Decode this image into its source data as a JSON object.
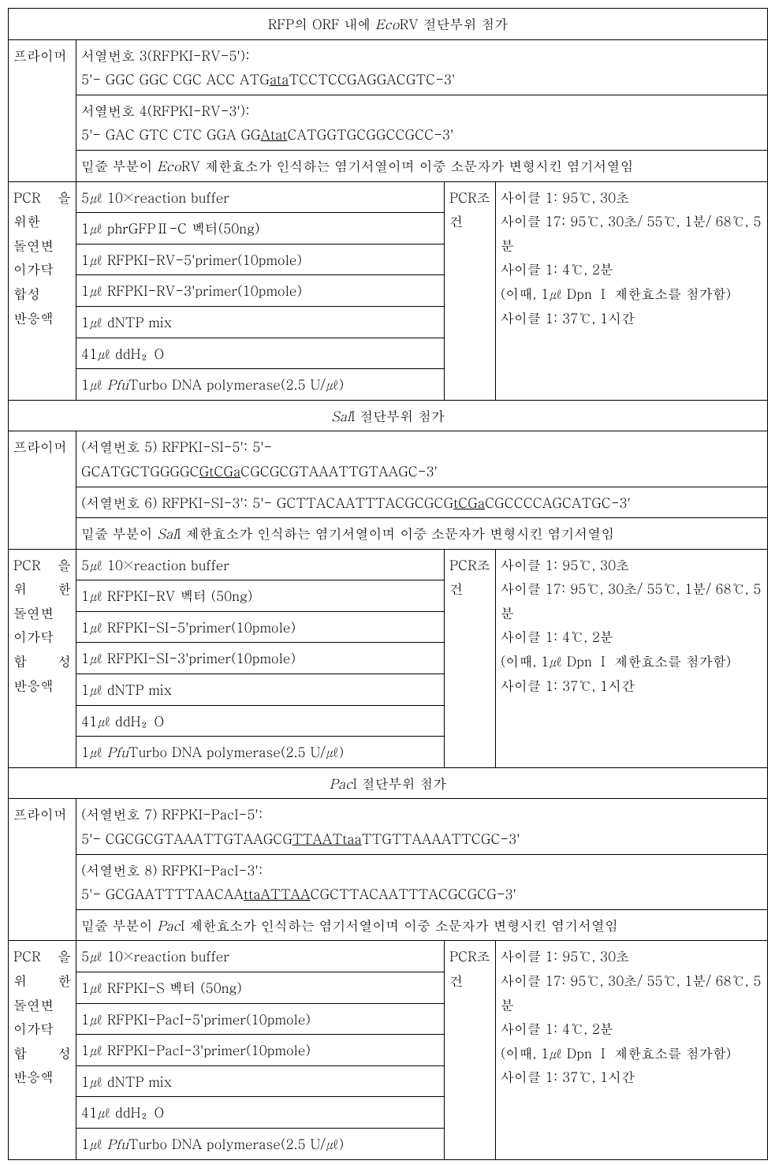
{
  "colors": {
    "border": "#000000",
    "bg": "#ffffff",
    "text": "#000000"
  },
  "sections": [
    {
      "header_pre": "RFP의 ORF 내에 ",
      "header_enzyme": "Eco",
      "header_enzyme_suffix": "RV 절단부위 첨가",
      "primer_label": "프라이머",
      "primer1_title": "서열번호   3(RFPKI-RV-5'):",
      "primer1_pre": "5'- GGC GGC CGC ACC ATG",
      "primer1_mut": "ata",
      "primer1_post": "TCCTCCGAGGACGTC-3'",
      "primer2_title": "서열번호 4(RFPKI-RV-3'):",
      "primer2_pre": "5'- GAC GTC CTC   GGA GG",
      "primer2_mut": "Atat",
      "primer2_post": "CATGGTGCGGCCGCC-3'",
      "note_pre": "밑줄  부분이 ",
      "note_enzyme": "Eco",
      "note_post": "RV 제한효소가 인식하는 염기서열이며 이중 소문자가 변형시킨 염기서열임",
      "mix_label_lines": [
        "PCR 을",
        "위한",
        "돌연변",
        "이가닥",
        "합성",
        "반응액"
      ],
      "mix_rows": [
        "5㎕ 10×reaction buffer",
        "1㎕ phrGFPⅡ-C 벡터(50ng)",
        "1㎕ RFPKI-RV-5'primer(10pmole)",
        "1㎕ RFPKI-RV-3'primer(10pmole)",
        "1㎕ dNTP mix",
        "41㎕ ddH₂O"
      ],
      "mix_last_pre": "1㎕ ",
      "mix_last_it": "Pfu",
      "mix_last_post": "Turbo DNA polymerase(2.5 U/㎕)",
      "cond_label": "PCR조건",
      "cond_lines": [
        "사이클 1: 95℃, 30초",
        "사이클 17: 95℃, 30초/ 55℃, 1분/ 68℃, 5분",
        "사이클 1: 4℃, 2분",
        "(이때, 1㎕ Dpn Ⅰ 제한효소를 첨가함)",
        "사이클 1: 37℃, 1시간"
      ]
    },
    {
      "header_pre": "",
      "header_enzyme": "Sal",
      "header_enzyme_suffix": "I 절단부위 첨가",
      "primer_label": "프라이머",
      "primer1_title": "(서열번호         5)          RFPKI-SI-5':          5'-",
      "primer1_pre": "GCATGCTGGGGC",
      "primer1_mut_underline": "GtCGa",
      "primer1_post": "CGCGCGTAAATTGTAAGC-3'",
      "primer2_pre": "(서열번호 6) RFPKI-SI-3': 5'- GCTTACAATTTACGCGCG",
      "primer2_mut_underline": "tCGa",
      "primer2_post": "CGCCCCAGCATGC-3'",
      "note_pre": "밑줄  부분이 ",
      "note_enzyme": "Sal",
      "note_post": "I 제한효소가 인식하는 염기서열이며 이중 소문자가 변형시킨 염기서열임",
      "mix_label_lines": [
        "PCR 을",
        "위   한",
        "돌연변",
        "이가닥",
        "합   성",
        "반응액"
      ],
      "mix_rows": [
        "5㎕ 10×reaction buffer",
        "1㎕ RFPKI-RV 벡터 (50ng)",
        "1㎕ RFPKI-SI-5'primer(10pmole)",
        "1㎕ RFPKI-SI-3'primer(10pmole)",
        "1㎕ dNTP mix",
        "41㎕ ddH₂O"
      ],
      "mix_last_pre": "1㎕ ",
      "mix_last_it": "Pfu",
      "mix_last_post": "Turbo DNA polymerase(2.5 U/㎕)",
      "cond_label": "PCR조건",
      "cond_lines": [
        "사이클 1: 95℃, 30초",
        "사이클 17: 95℃, 30초/ 55℃, 1분/ 68℃, 5분",
        "사이클 1: 4℃, 2분",
        "(이때, 1㎕ Dpn Ⅰ 제한효소를 첨가함)",
        "사이클 1: 37℃, 1시간"
      ]
    },
    {
      "header_pre": "",
      "header_enzyme": "Pac",
      "header_enzyme_suffix": "I 절단부위 첨가",
      "primer_label": "프라이머",
      "primer1_title": "(서열번호 7) RFPKI-PacI-5':",
      "primer1_pre": "5'-   CGCGCGTAAATTGTAAGCG",
      "primer1_mut_underline": "TTAATtaa",
      "primer1_post": "TTGTTAAAATTCGC-3'",
      "primer2_title": "(서열번호 8) RFPKI-PacI-3':",
      "primer2_pre": "5'- GCGAATTTTAACAA",
      "primer2_mut_underline": "ttaATTAA",
      "primer2_post": "CGCTTACAATTTACGCGCG-3'",
      "note_pre": "밑줄  부분이 ",
      "note_enzyme": "Pac",
      "note_post": "I 제한효소가 인식하는 염기서열이며 이중 소문자가 변형시킨  염기서열임",
      "mix_label_lines": [
        "PCR 을",
        "위   한",
        "돌연변",
        "이가닥",
        "합   성",
        "반응액"
      ],
      "mix_rows": [
        "5㎕ 10×reaction buffer",
        "1㎕ RFPKI-S 벡터 (50ng)",
        "1㎕ RFPKI-PacI-5'primer(10pmole)",
        "1㎕ RFPKI-PacI-3'primer(10pmole)",
        "1㎕ dNTP mix",
        "41㎕ ddH₂O"
      ],
      "mix_last_pre": "1㎕ ",
      "mix_last_it": "Pfu",
      "mix_last_post": "Turbo DNA polymerase(2.5 U/㎕)",
      "cond_label": "PCR조건",
      "cond_lines": [
        "사이클 1: 95℃, 30초",
        "사이클 17: 95℃, 30초/ 55℃, 1분/ 68℃, 5분",
        "사이클 1: 4℃, 2분",
        "(이때, 1㎕ Dpn Ⅰ 제한효소를 첨가함)",
        "사이클 1: 37℃, 1시간"
      ]
    }
  ]
}
